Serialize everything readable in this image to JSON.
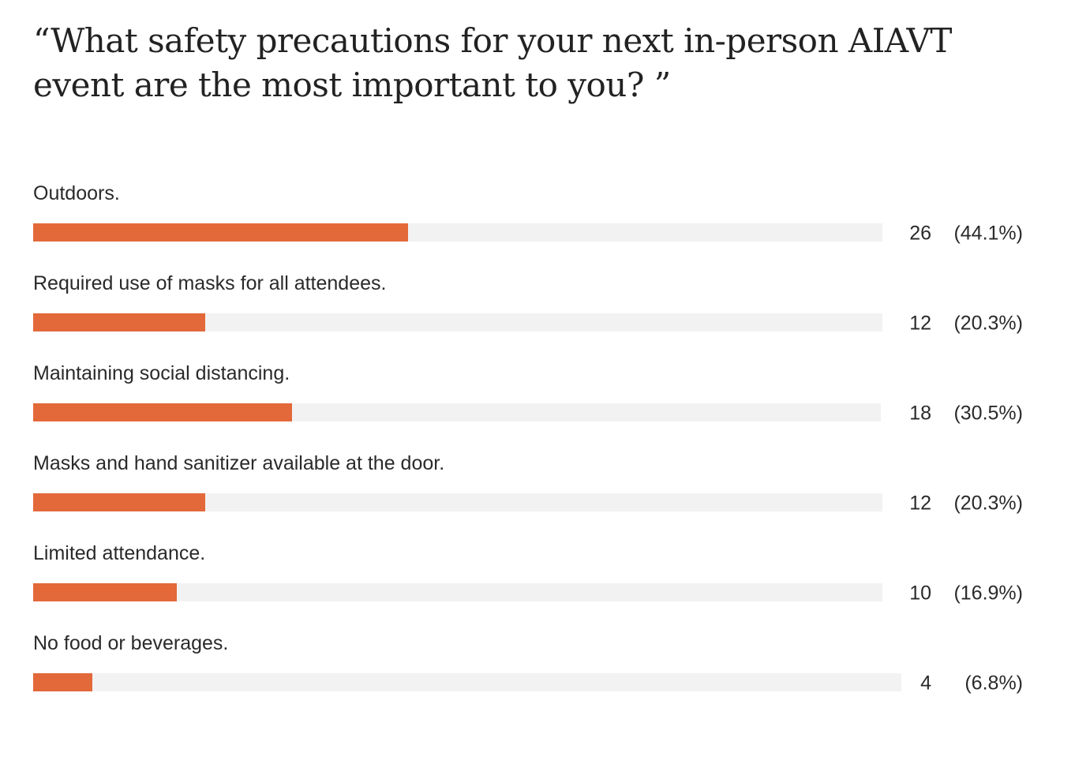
{
  "title": "“What safety precautions for your next in-person AIAVT event are the most important to you? ”",
  "colors": {
    "bar_fill": "#e3693a",
    "track": "#f2f2f2",
    "text": "#2a2a2a"
  },
  "chart_data": {
    "type": "bar",
    "orientation": "horizontal",
    "title": "“What safety precautions for your next in-person AIAVT event are the most important to you? ”",
    "categories": [
      "Outdoors.",
      "Required use of masks for all attendees.",
      "Maintaining social distancing.",
      "Masks and hand sanitizer available at the door.",
      "Limited attendance.",
      "No food or beverages."
    ],
    "values": [
      26,
      12,
      18,
      12,
      10,
      4
    ],
    "percent_labels": [
      "(44.1%)",
      "(20.3%)",
      "(30.5%)",
      "(20.3%)",
      "(16.9%)",
      "(6.8%)"
    ],
    "percents": [
      44.1,
      20.3,
      30.5,
      20.3,
      16.9,
      6.8
    ],
    "xlim": [
      0,
      100
    ],
    "grid": false,
    "legend": "none"
  }
}
